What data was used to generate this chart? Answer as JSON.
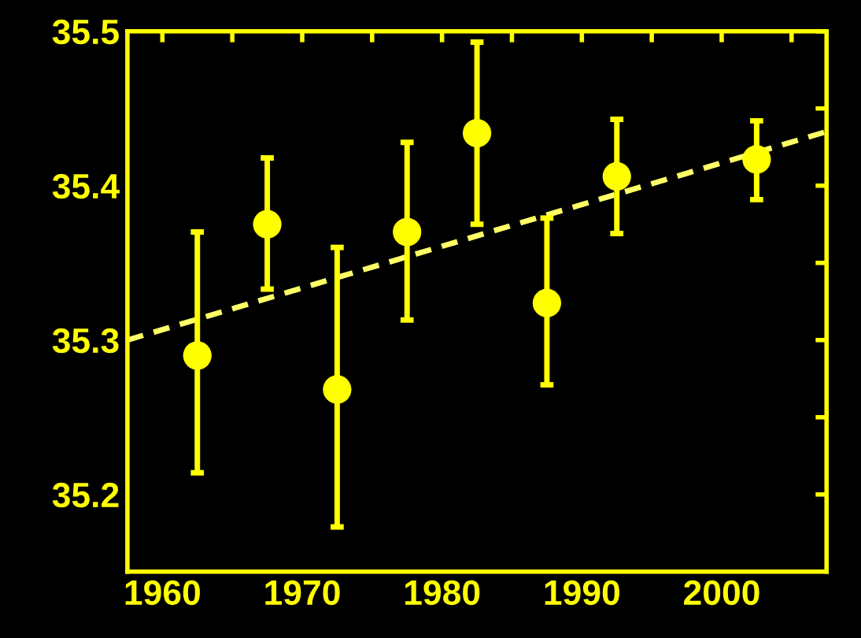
{
  "chart_data": {
    "type": "scatter",
    "x": [
      1962.5,
      1967.5,
      1972.5,
      1977.5,
      1982.5,
      1987.5,
      1992.5,
      2002.5
    ],
    "series": [
      {
        "color": "#ffff00",
        "values": [
          35.29,
          35.375,
          35.268,
          35.37,
          35.434,
          35.324,
          35.406,
          35.417
        ],
        "errors": [
          [
            35.214,
            35.37
          ],
          [
            35.333,
            35.418
          ],
          [
            35.179,
            35.36
          ],
          [
            35.313,
            35.428
          ],
          [
            35.375,
            35.493
          ],
          [
            35.271,
            35.379
          ],
          [
            35.369,
            35.443
          ],
          [
            35.391,
            35.442
          ]
        ],
        "marker": "circle"
      },
      {
        "type": "line",
        "color": "#ffff66",
        "x": [
          1957.5,
          2007.5
        ],
        "values": [
          35.3,
          35.435
        ],
        "line_style": "dashed",
        "marker": "none"
      }
    ],
    "xlim": [
      1957.5,
      2007.5
    ],
    "xticks": [
      1960,
      {
        "value": 1965,
        "label": null
      },
      1970,
      {
        "value": 1975,
        "label": null
      },
      1980,
      {
        "value": 1985,
        "label": null
      },
      1990,
      {
        "value": 1995,
        "label": null
      },
      2000,
      {
        "value": 2005,
        "label": null
      }
    ],
    "ylim": [
      35.15,
      35.5
    ],
    "yticks": [
      35.2,
      {
        "value": 35.25,
        "label": null
      },
      35.3,
      {
        "value": 35.35,
        "label": null
      },
      35.4,
      {
        "value": 35.45,
        "label": null
      },
      35.5
    ],
    "grid": false,
    "legend": false
  }
}
